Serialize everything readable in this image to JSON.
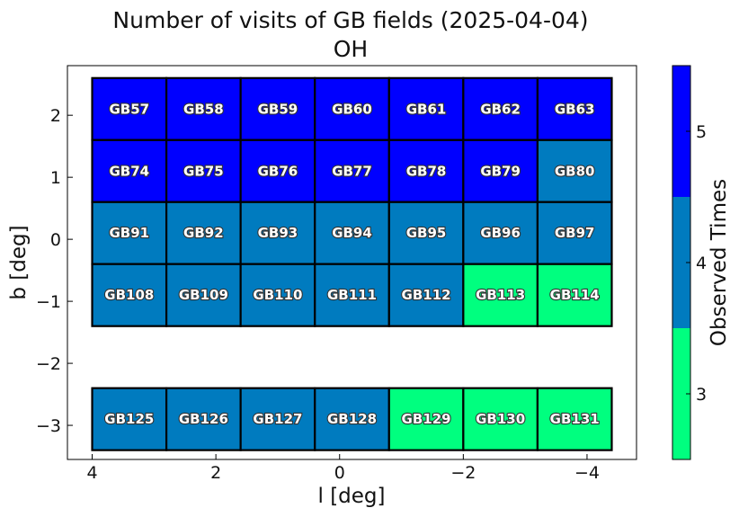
{
  "chart_data": {
    "type": "heatmap",
    "title": "Number of visits of GB fields (2025-04-04)",
    "subtitle": "OH",
    "xlabel": "l [deg]",
    "ylabel": "b [deg]",
    "xlim": [
      4.4,
      -4.8
    ],
    "ylim": [
      -3.55,
      2.8
    ],
    "x_ticks": [
      4,
      2,
      0,
      -2,
      -4
    ],
    "x_tick_labels": [
      "4",
      "2",
      "0",
      "−2",
      "−4"
    ],
    "y_ticks": [
      2,
      1,
      0,
      -1,
      -2,
      -3
    ],
    "y_tick_labels": [
      "2",
      "1",
      "0",
      "−1",
      "−2",
      "−3"
    ],
    "grid": false,
    "cell_width": 1.2,
    "cell_height": 1.0,
    "columns_l": [
      3.4,
      2.2,
      1.0,
      -0.2,
      -1.4,
      -2.6,
      -3.8
    ],
    "rows_b": [
      2,
      1,
      0,
      -1,
      -2.8
    ],
    "rows_b_actual": [
      2.1,
      1.1,
      0.1,
      -0.9,
      -2.9
    ],
    "fields": [
      {
        "name": "GB57",
        "l": 3.4,
        "b": 2.1,
        "visits": 5
      },
      {
        "name": "GB58",
        "l": 2.2,
        "b": 2.1,
        "visits": 5
      },
      {
        "name": "GB59",
        "l": 1.0,
        "b": 2.1,
        "visits": 5
      },
      {
        "name": "GB60",
        "l": -0.2,
        "b": 2.1,
        "visits": 5
      },
      {
        "name": "GB61",
        "l": -1.4,
        "b": 2.1,
        "visits": 5
      },
      {
        "name": "GB62",
        "l": -2.6,
        "b": 2.1,
        "visits": 5
      },
      {
        "name": "GB63",
        "l": -3.8,
        "b": 2.1,
        "visits": 5
      },
      {
        "name": "GB74",
        "l": 3.4,
        "b": 1.1,
        "visits": 5
      },
      {
        "name": "GB75",
        "l": 2.2,
        "b": 1.1,
        "visits": 5
      },
      {
        "name": "GB76",
        "l": 1.0,
        "b": 1.1,
        "visits": 5
      },
      {
        "name": "GB77",
        "l": -0.2,
        "b": 1.1,
        "visits": 5
      },
      {
        "name": "GB78",
        "l": -1.4,
        "b": 1.1,
        "visits": 5
      },
      {
        "name": "GB79",
        "l": -2.6,
        "b": 1.1,
        "visits": 5
      },
      {
        "name": "GB80",
        "l": -3.8,
        "b": 1.1,
        "visits": 4
      },
      {
        "name": "GB91",
        "l": 3.4,
        "b": 0.1,
        "visits": 4
      },
      {
        "name": "GB92",
        "l": 2.2,
        "b": 0.1,
        "visits": 4
      },
      {
        "name": "GB93",
        "l": 1.0,
        "b": 0.1,
        "visits": 4
      },
      {
        "name": "GB94",
        "l": -0.2,
        "b": 0.1,
        "visits": 4
      },
      {
        "name": "GB95",
        "l": -1.4,
        "b": 0.1,
        "visits": 4
      },
      {
        "name": "GB96",
        "l": -2.6,
        "b": 0.1,
        "visits": 4
      },
      {
        "name": "GB97",
        "l": -3.8,
        "b": 0.1,
        "visits": 4
      },
      {
        "name": "GB108",
        "l": 3.4,
        "b": -0.9,
        "visits": 4
      },
      {
        "name": "GB109",
        "l": 2.2,
        "b": -0.9,
        "visits": 4
      },
      {
        "name": "GB110",
        "l": 1.0,
        "b": -0.9,
        "visits": 4
      },
      {
        "name": "GB111",
        "l": -0.2,
        "b": -0.9,
        "visits": 4
      },
      {
        "name": "GB112",
        "l": -1.4,
        "b": -0.9,
        "visits": 4
      },
      {
        "name": "GB113",
        "l": -2.6,
        "b": -0.9,
        "visits": 3
      },
      {
        "name": "GB114",
        "l": -3.8,
        "b": -0.9,
        "visits": 3
      },
      {
        "name": "GB125",
        "l": 3.4,
        "b": -2.9,
        "visits": 4
      },
      {
        "name": "GB126",
        "l": 2.2,
        "b": -2.9,
        "visits": 4
      },
      {
        "name": "GB127",
        "l": 1.0,
        "b": -2.9,
        "visits": 4
      },
      {
        "name": "GB128",
        "l": -0.2,
        "b": -2.9,
        "visits": 4
      },
      {
        "name": "GB129",
        "l": -1.4,
        "b": -2.9,
        "visits": 3
      },
      {
        "name": "GB130",
        "l": -2.6,
        "b": -2.9,
        "visits": 3
      },
      {
        "name": "GB131",
        "l": -3.8,
        "b": -2.9,
        "visits": 3
      }
    ],
    "colorbar": {
      "label": "Observed Times",
      "range": [
        2.5,
        5.5
      ],
      "levels": [
        {
          "min": 2.5,
          "max": 3.5,
          "value": 3,
          "color": "#00ff7f"
        },
        {
          "min": 3.5,
          "max": 4.5,
          "value": 4,
          "color": "#007bbf"
        },
        {
          "min": 4.5,
          "max": 5.5,
          "value": 5,
          "color": "#0000ff"
        }
      ],
      "ticks": [
        3,
        4,
        5
      ],
      "tick_labels": [
        "3",
        "4",
        "5"
      ],
      "placement": "right"
    },
    "cell_border_color": "#000000"
  }
}
